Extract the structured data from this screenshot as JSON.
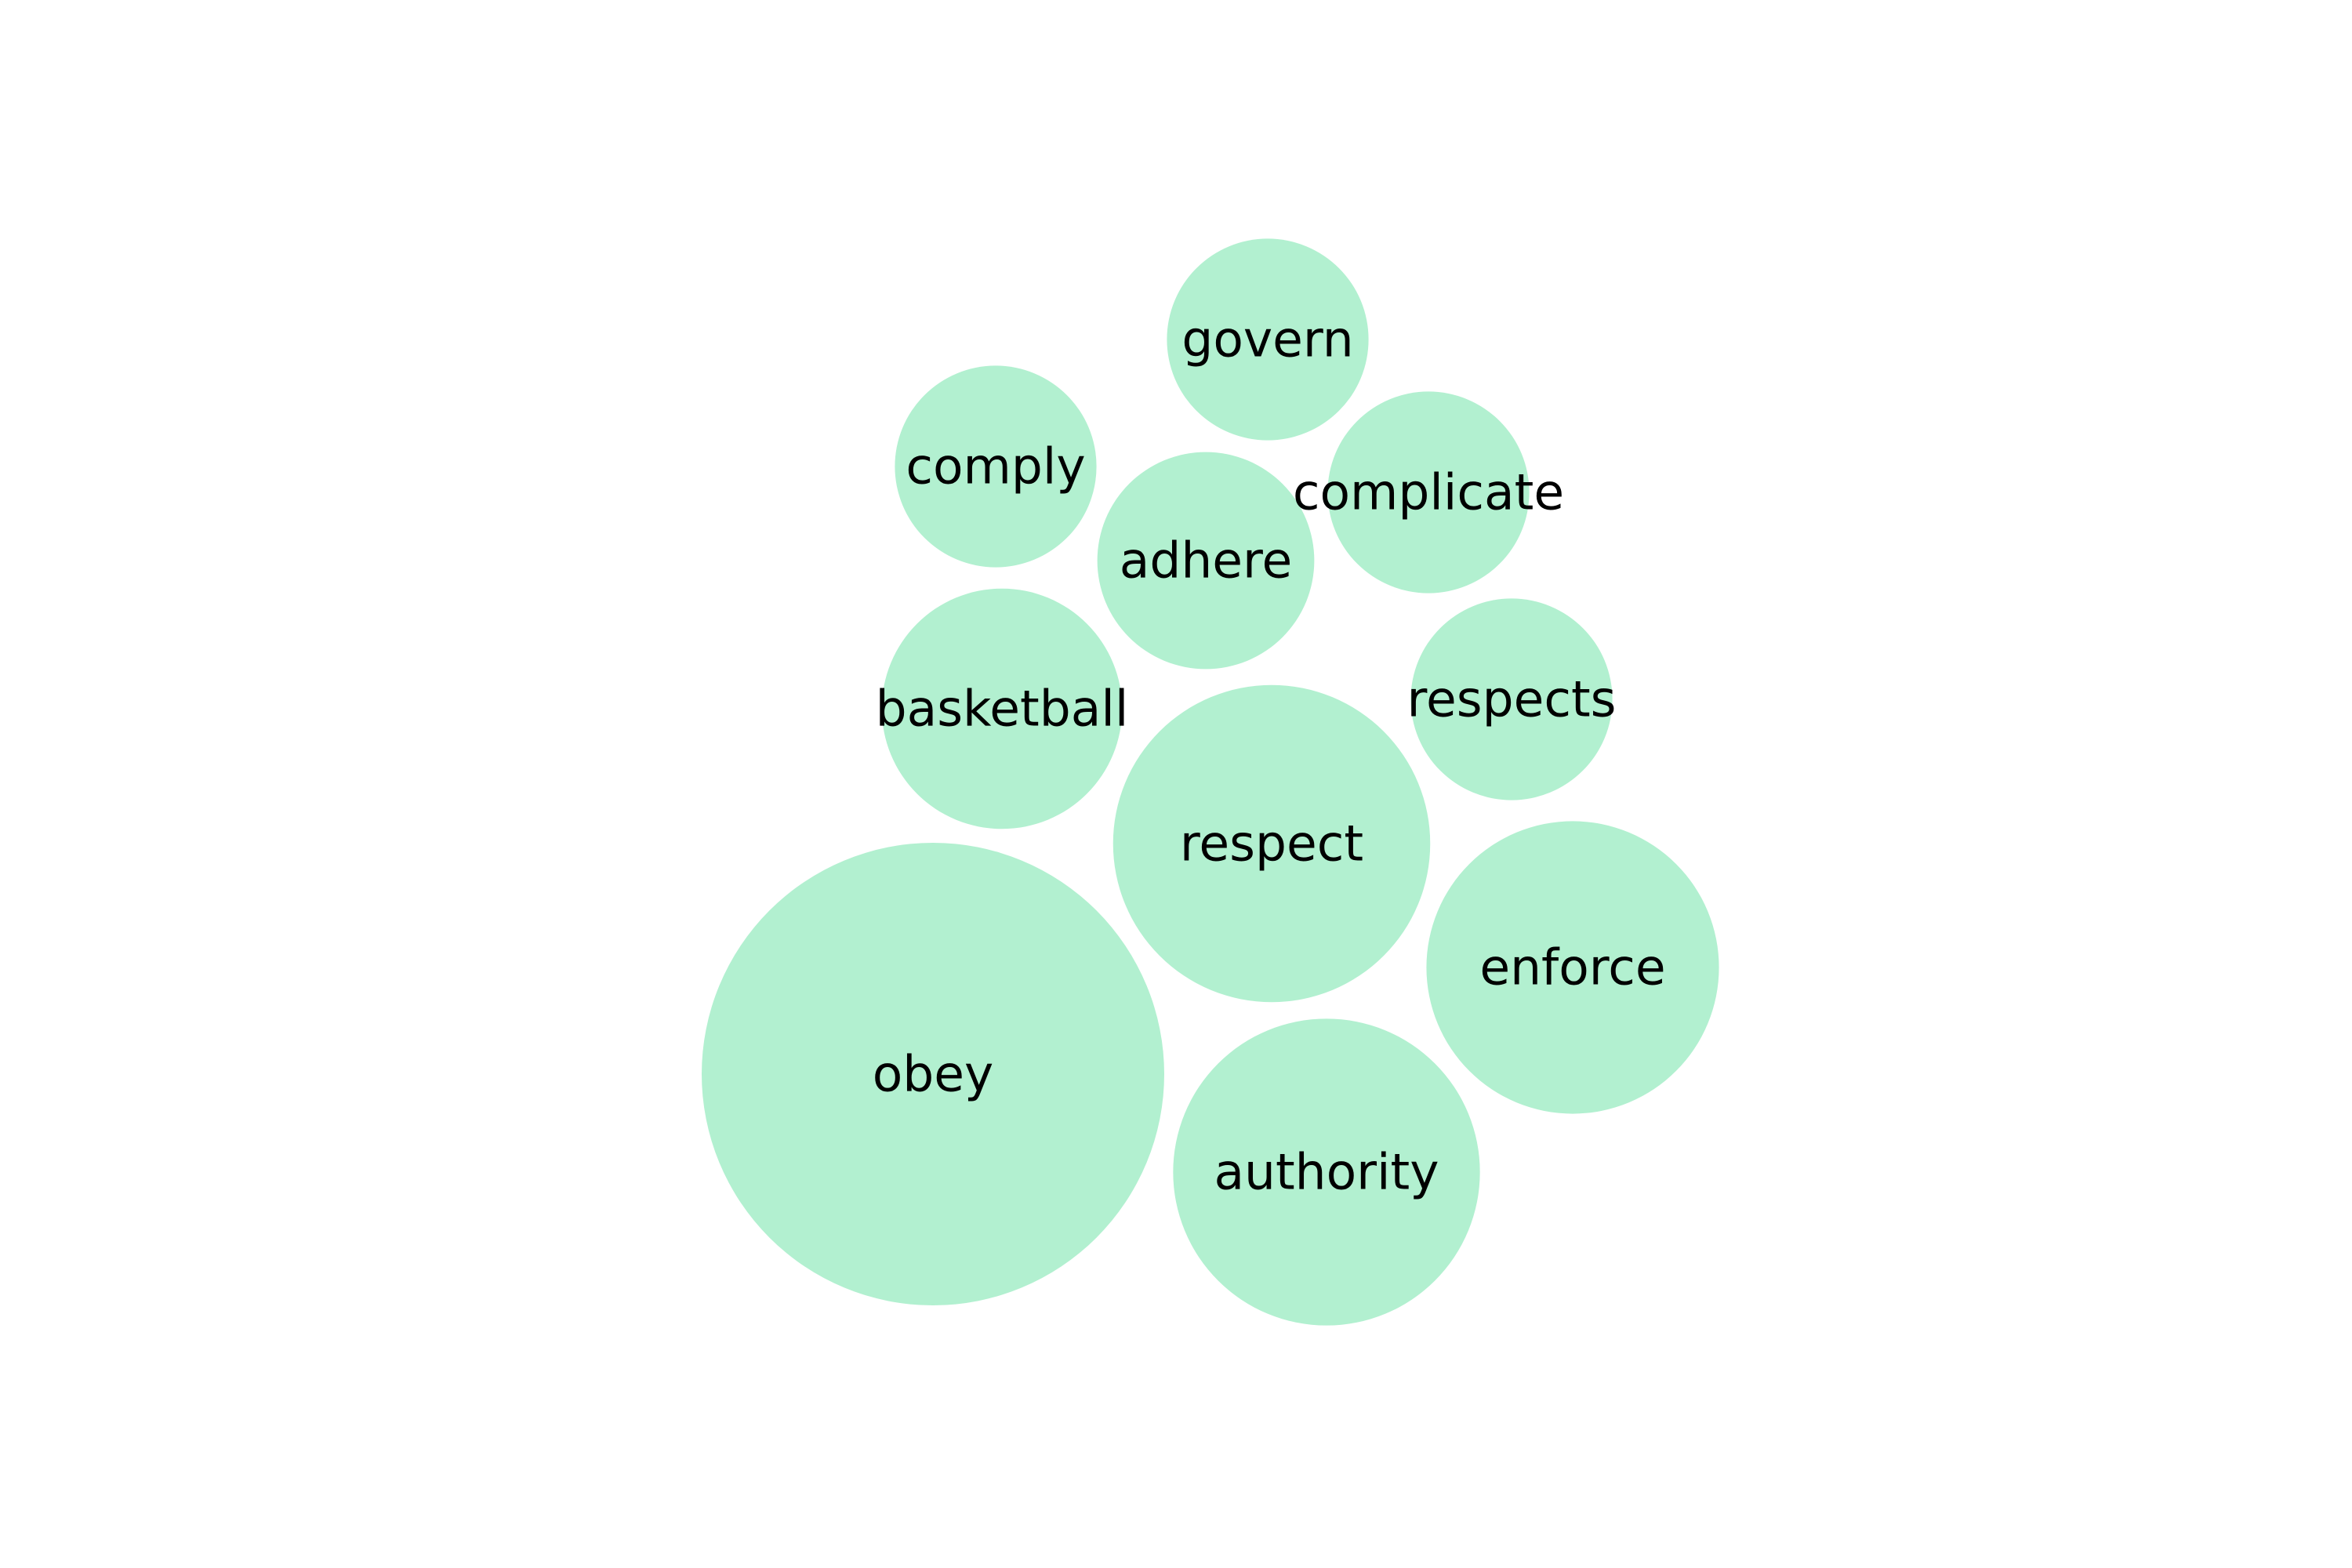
{
  "chart_data": {
    "type": "bubble",
    "title": "",
    "xlabel": "",
    "ylabel": "",
    "grid": false,
    "legend": "none",
    "bubble_color": "#b2f0d0",
    "label_color": "#000000",
    "bubbles": [
      {
        "label": "obey",
        "value": 100
      },
      {
        "label": "respect",
        "value": 47
      },
      {
        "label": "authority",
        "value": 44
      },
      {
        "label": "enforce",
        "value": 40
      },
      {
        "label": "basketball",
        "value": 27
      },
      {
        "label": "adhere",
        "value": 22
      },
      {
        "label": "complicate",
        "value": 19
      },
      {
        "label": "comply",
        "value": 19
      },
      {
        "label": "govern",
        "value": 19
      },
      {
        "label": "respects",
        "value": 19
      }
    ]
  }
}
